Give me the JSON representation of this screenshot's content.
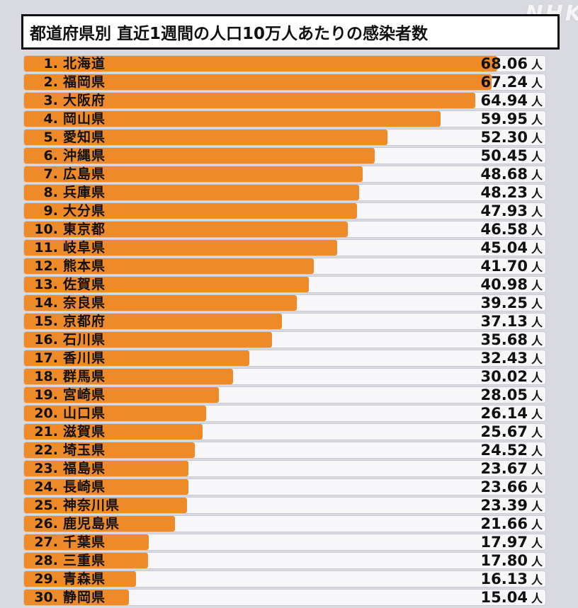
{
  "watermark": "NHK",
  "title": "都道府県別 直近1週間の人口10万人あたりの感染者数",
  "colors": {
    "bar": "#ef8a28",
    "track": "#f7f7f9",
    "background": "#d9dae1",
    "title_text": "#111111",
    "title_border": "#111111"
  },
  "chart_data": {
    "type": "bar",
    "orientation": "horizontal",
    "title": "都道府県別 直近1週間の人口10万人あたりの感染者数",
    "value_unit": "人",
    "scale_max": 75,
    "legend_position": "none",
    "grid": false,
    "rows": [
      {
        "rank": "1.",
        "name": "北海道",
        "value": "68.06"
      },
      {
        "rank": "2.",
        "name": "福岡県",
        "value": "67.24"
      },
      {
        "rank": "3.",
        "name": "大阪府",
        "value": "64.94"
      },
      {
        "rank": "4.",
        "name": "岡山県",
        "value": "59.95"
      },
      {
        "rank": "5.",
        "name": "愛知県",
        "value": "52.30"
      },
      {
        "rank": "6.",
        "name": "沖縄県",
        "value": "50.45"
      },
      {
        "rank": "7.",
        "name": "広島県",
        "value": "48.68"
      },
      {
        "rank": "8.",
        "name": "兵庫県",
        "value": "48.23"
      },
      {
        "rank": "9.",
        "name": "大分県",
        "value": "47.93"
      },
      {
        "rank": "10.",
        "name": "東京都",
        "value": "46.58"
      },
      {
        "rank": "11.",
        "name": "岐阜県",
        "value": "45.04"
      },
      {
        "rank": "12.",
        "name": "熊本県",
        "value": "41.70"
      },
      {
        "rank": "13.",
        "name": "佐賀県",
        "value": "40.98"
      },
      {
        "rank": "14.",
        "name": "奈良県",
        "value": "39.25"
      },
      {
        "rank": "15.",
        "name": "京都府",
        "value": "37.13"
      },
      {
        "rank": "16.",
        "name": "石川県",
        "value": "35.68"
      },
      {
        "rank": "17.",
        "name": "香川県",
        "value": "32.43"
      },
      {
        "rank": "18.",
        "name": "群馬県",
        "value": "30.02"
      },
      {
        "rank": "19.",
        "name": "宮崎県",
        "value": "28.05"
      },
      {
        "rank": "20.",
        "name": "山口県",
        "value": "26.14"
      },
      {
        "rank": "21.",
        "name": "滋賀県",
        "value": "25.67"
      },
      {
        "rank": "22.",
        "name": "埼玉県",
        "value": "24.52"
      },
      {
        "rank": "23.",
        "name": "福島県",
        "value": "23.67"
      },
      {
        "rank": "24.",
        "name": "長崎県",
        "value": "23.66"
      },
      {
        "rank": "25.",
        "name": "神奈川県",
        "value": "23.39"
      },
      {
        "rank": "26.",
        "name": "鹿児島県",
        "value": "21.66"
      },
      {
        "rank": "27.",
        "name": "千葉県",
        "value": "17.97"
      },
      {
        "rank": "28.",
        "name": "三重県",
        "value": "17.80"
      },
      {
        "rank": "29.",
        "name": "青森県",
        "value": "16.13"
      },
      {
        "rank": "30.",
        "name": "静岡県",
        "value": "15.04"
      }
    ]
  }
}
